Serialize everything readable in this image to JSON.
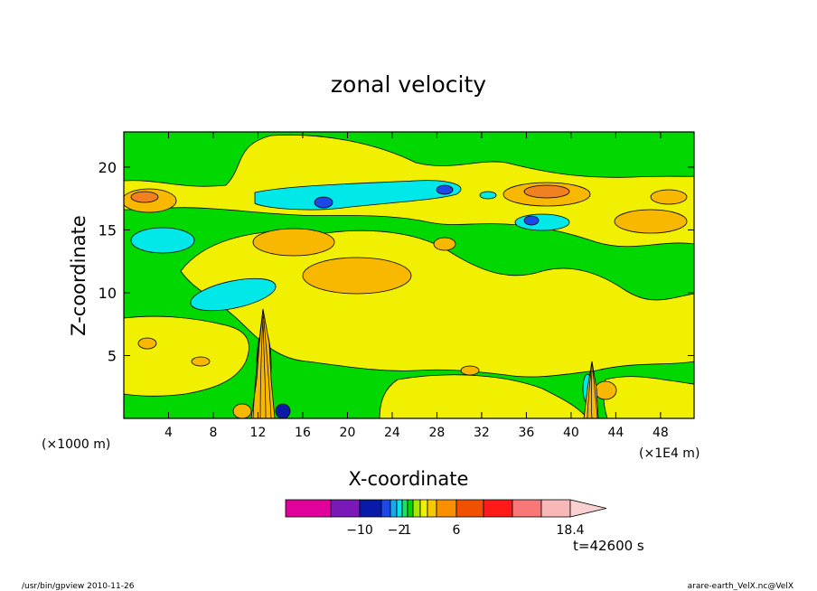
{
  "chart_data": {
    "type": "contour",
    "title": "zonal velocity",
    "xlabel": "X-coordinate",
    "ylabel": "Z-coordinate",
    "x_unit": "(×1E4 m)",
    "y_unit": "(×1000 m)",
    "xlim": [
      0,
      51
    ],
    "ylim": [
      0,
      22.8
    ],
    "x_ticks": [
      4,
      8,
      12,
      16,
      20,
      24,
      28,
      32,
      36,
      40,
      44,
      48
    ],
    "y_ticks": [
      5,
      10,
      15,
      20
    ],
    "time_label": "t=42600 s",
    "colorbar": {
      "labels": [
        {
          "text": "−10",
          "value": -10
        },
        {
          "text": "−2",
          "value": -2
        },
        {
          "text": "1",
          "value": 1
        },
        {
          "text": "6",
          "value": 6
        },
        {
          "text": "18.4",
          "value": 18.4
        }
      ],
      "colors": [
        "#e0009a",
        "#7a18b8",
        "#0a1aa8",
        "#1c48e8",
        "#18a8f0",
        "#00e8e8",
        "#20e060",
        "#00d800",
        "#a8e800",
        "#f0f000",
        "#f8c800",
        "#f89000",
        "#f05000",
        "#ff1a1a",
        "#f87878",
        "#f8b8b8",
        "#f8d0d0"
      ]
    },
    "field_colors": {
      "background": "#00d800",
      "weak_positive": "#f0f000",
      "positive": "#f8b800",
      "strong_positive": "#f08020",
      "negative": "#00e8e8",
      "strong_negative": "#1c48e8",
      "stronger_negative": "#0a1aa8"
    }
  },
  "footer": {
    "left": "/usr/bin/gpview   2010-11-26",
    "right": "arare-earth_VelX.nc@VelX"
  }
}
